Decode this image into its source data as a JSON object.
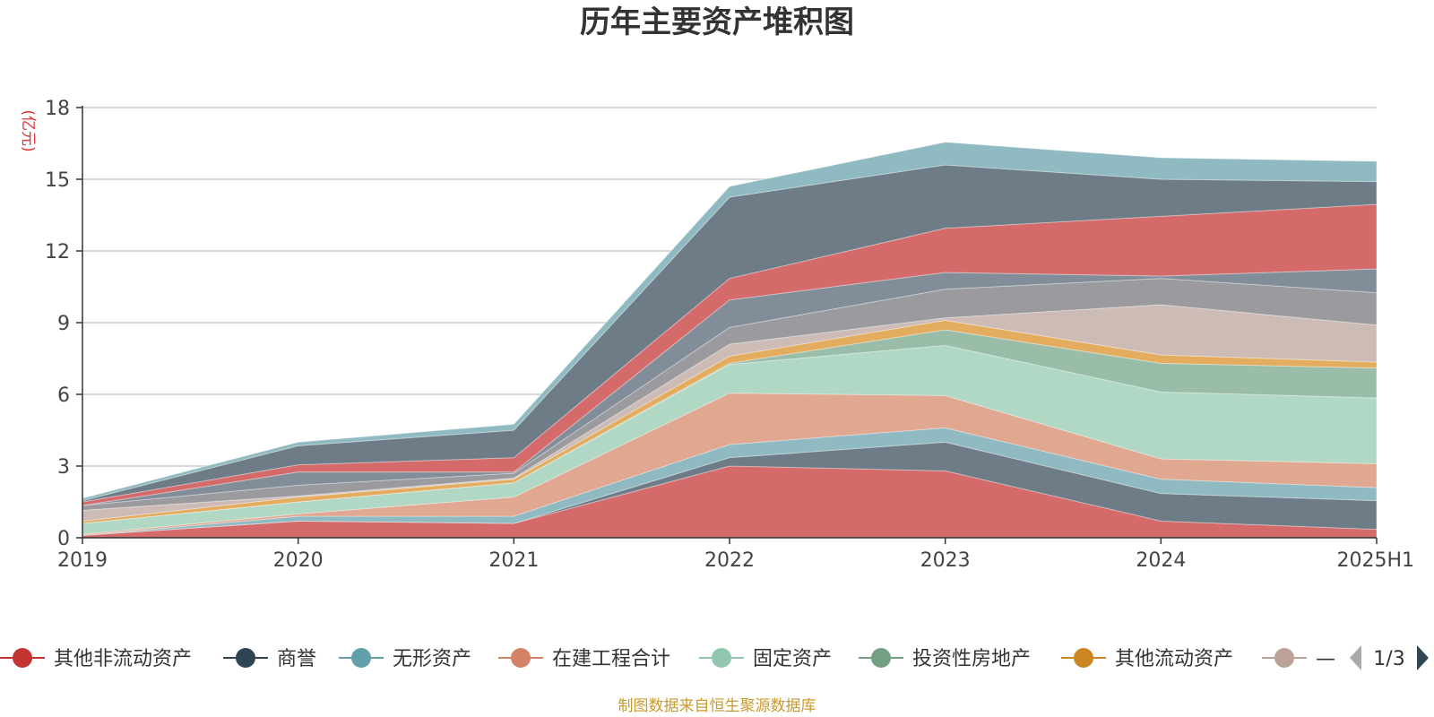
{
  "chart_data": {
    "type": "area",
    "stacked": true,
    "title": "历年主要资产堆积图",
    "unit_label": "(亿元)",
    "x": [
      "2019",
      "2020",
      "2021",
      "2022",
      "2023",
      "2024",
      "2025H1"
    ],
    "ylim": [
      0,
      18
    ],
    "yticks": [
      0,
      3,
      6,
      9,
      12,
      15,
      18
    ],
    "grid": true,
    "legend_position": "bottom",
    "series": [
      {
        "name": "其他非流动资产",
        "color": "#d46a6a",
        "values": [
          0.1,
          0.7,
          0.6,
          3.0,
          2.8,
          0.7,
          0.35
        ]
      },
      {
        "name": "商誉",
        "color": "#6e7c87",
        "values": [
          0.0,
          0.0,
          0.0,
          0.35,
          1.2,
          1.15,
          1.2
        ]
      },
      {
        "name": "无形资产",
        "color": "#8fbac1",
        "values": [
          0.0,
          0.2,
          0.3,
          0.55,
          0.6,
          0.6,
          0.55
        ]
      },
      {
        "name": "在建工程合计",
        "color": "#e0a791",
        "values": [
          0.05,
          0.1,
          0.8,
          2.15,
          1.35,
          0.85,
          1.0
        ]
      },
      {
        "name": "固定资产",
        "color": "#b1d8c4",
        "values": [
          0.45,
          0.5,
          0.6,
          1.2,
          2.1,
          2.8,
          2.75
        ]
      },
      {
        "name": "投资性房地产",
        "color": "#9abda9",
        "values": [
          0.0,
          0.0,
          0.0,
          0.05,
          0.65,
          1.2,
          1.25
        ]
      },
      {
        "name": "其他流动资产",
        "color": "#e3ac5e",
        "values": [
          0.1,
          0.2,
          0.15,
          0.3,
          0.4,
          0.35,
          0.25
        ]
      },
      {
        "name": "",
        "color": "#ccbcb5",
        "values": [
          0.45,
          0.05,
          0.05,
          0.5,
          0.1,
          2.1,
          1.55
        ]
      },
      {
        "name": "",
        "color": "#9b9b9f",
        "values": [
          0.2,
          0.45,
          0.2,
          0.7,
          1.2,
          1.1,
          1.35
        ]
      },
      {
        "name": "",
        "color": "#818e99",
        "values": [
          0.0,
          0.55,
          0.05,
          1.15,
          0.7,
          0.1,
          1.0
        ]
      },
      {
        "name": "",
        "color": "#d46a6a",
        "values": [
          0.15,
          0.3,
          0.6,
          0.9,
          1.85,
          2.5,
          2.7
        ]
      },
      {
        "name": "",
        "color": "#6e7c87",
        "values": [
          0.05,
          0.8,
          1.15,
          3.4,
          2.65,
          1.55,
          0.95
        ]
      },
      {
        "name": "",
        "color": "#8fbac1",
        "values": [
          0.1,
          0.15,
          0.25,
          0.45,
          0.95,
          0.9,
          0.85
        ]
      }
    ]
  },
  "legend": {
    "items": [
      {
        "label": "其他非流动资产",
        "color": "#c23531"
      },
      {
        "label": "商誉",
        "color": "#2f4554"
      },
      {
        "label": "无形资产",
        "color": "#61a0a8"
      },
      {
        "label": "在建工程合计",
        "color": "#d48265"
      },
      {
        "label": "固定资产",
        "color": "#91c7ae"
      },
      {
        "label": "投资性房地产",
        "color": "#749f83"
      },
      {
        "label": "其他流动资产",
        "color": "#ca8622"
      },
      {
        "label": "—",
        "color": "#bda29a"
      }
    ],
    "page_indicator": "1/3",
    "prev_arrow_color": "#aaaaaa",
    "next_arrow_color": "#2f4554"
  },
  "source_note": "制图数据来自恒生聚源数据库"
}
